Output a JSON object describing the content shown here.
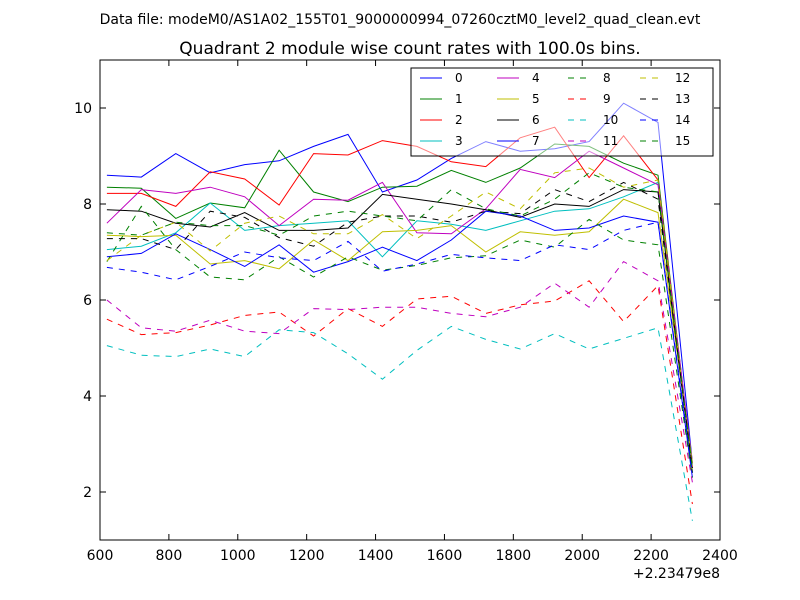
{
  "chart_data": {
    "type": "line",
    "suptitle": "Data file: modeM0/AS1A02_155T01_9000000994_07260cztM0_level2_quad_clean.evt",
    "title": "Quadrant 2 module wise count rates with 100.0s bins.",
    "xlabel": "",
    "ylabel": "",
    "x_offset_label": "+2.23479e8",
    "xlim": [
      600,
      2400
    ],
    "ylim": [
      1,
      11
    ],
    "xticks": [
      600,
      800,
      1000,
      1200,
      1400,
      1600,
      1800,
      2000,
      2200,
      2400
    ],
    "yticks": [
      2,
      4,
      6,
      8,
      10
    ],
    "x": [
      620,
      720,
      820,
      920,
      1020,
      1120,
      1220,
      1320,
      1420,
      1520,
      1620,
      1720,
      1820,
      1920,
      2020,
      2120,
      2220,
      2320
    ],
    "legend_location": "top-right",
    "series": [
      {
        "name": "0",
        "color": "#0000ff",
        "dash": "solid",
        "values": [
          8.6,
          8.56,
          9.05,
          8.65,
          8.82,
          8.9,
          9.2,
          9.45,
          8.25,
          8.5,
          8.95,
          9.3,
          9.1,
          9.15,
          9.3,
          10.1,
          9.7,
          2.6
        ]
      },
      {
        "name": "1",
        "color": "#008000",
        "dash": "solid",
        "values": [
          8.35,
          8.33,
          7.7,
          8.02,
          7.92,
          9.12,
          8.25,
          8.05,
          8.35,
          8.37,
          8.7,
          8.45,
          8.75,
          9.25,
          9.2,
          8.85,
          8.6,
          2.5
        ]
      },
      {
        "name": "2",
        "color": "#ff0000",
        "dash": "solid",
        "values": [
          8.22,
          8.22,
          7.95,
          8.67,
          8.52,
          7.98,
          9.05,
          9.02,
          9.32,
          9.2,
          8.88,
          8.78,
          9.38,
          9.6,
          8.55,
          9.42,
          8.5,
          2.5
        ]
      },
      {
        "name": "3",
        "color": "#00bfbf",
        "dash": "solid",
        "values": [
          7.05,
          7.12,
          7.4,
          8.02,
          7.45,
          7.55,
          7.6,
          7.65,
          6.9,
          7.65,
          7.58,
          7.45,
          7.65,
          7.85,
          7.9,
          8.15,
          8.45,
          2.4
        ]
      },
      {
        "name": "4",
        "color": "#bf00bf",
        "dash": "solid",
        "values": [
          7.6,
          8.3,
          8.22,
          8.35,
          8.15,
          7.55,
          8.1,
          8.08,
          8.45,
          7.4,
          7.38,
          7.9,
          8.72,
          8.55,
          9.1,
          8.75,
          8.4,
          2.6
        ]
      },
      {
        "name": "5",
        "color": "#bfbf00",
        "dash": "solid",
        "values": [
          7.35,
          7.32,
          7.35,
          6.75,
          6.82,
          6.65,
          7.25,
          6.82,
          7.42,
          7.45,
          7.55,
          7.0,
          7.42,
          7.35,
          7.42,
          8.1,
          7.82,
          2.6
        ]
      },
      {
        "name": "6",
        "color": "#000000",
        "dash": "solid",
        "values": [
          7.88,
          7.85,
          7.6,
          7.52,
          7.82,
          7.45,
          7.45,
          7.5,
          8.2,
          8.1,
          8.0,
          7.88,
          7.72,
          8.0,
          7.95,
          8.3,
          8.25,
          2.4
        ]
      },
      {
        "name": "7",
        "color": "#0000ff",
        "dash": "solid",
        "values": [
          6.9,
          6.97,
          7.38,
          7.05,
          6.7,
          7.15,
          6.58,
          6.8,
          7.1,
          6.82,
          7.25,
          7.85,
          7.75,
          7.45,
          7.5,
          7.75,
          7.62,
          2.3
        ]
      },
      {
        "name": "8",
        "color": "#008000",
        "dash": "dashed",
        "values": [
          6.8,
          7.95,
          7.05,
          6.48,
          6.42,
          6.9,
          6.48,
          6.9,
          6.62,
          6.72,
          6.88,
          6.92,
          7.25,
          7.1,
          7.68,
          7.25,
          7.15,
          2.3
        ]
      },
      {
        "name": "9",
        "color": "#ff0000",
        "dash": "dashed",
        "values": [
          5.6,
          5.28,
          5.32,
          5.48,
          5.68,
          5.75,
          5.25,
          5.82,
          5.45,
          6.02,
          6.08,
          5.72,
          5.9,
          5.98,
          6.4,
          5.55,
          6.3,
          1.75
        ]
      },
      {
        "name": "10",
        "color": "#00bfbf",
        "dash": "dashed",
        "values": [
          5.05,
          4.85,
          4.82,
          4.98,
          4.82,
          5.38,
          5.32,
          4.88,
          4.35,
          4.95,
          5.45,
          5.18,
          4.98,
          5.3,
          4.98,
          5.2,
          5.42,
          1.4
        ]
      },
      {
        "name": "11",
        "color": "#bf00bf",
        "dash": "dashed",
        "values": [
          6.0,
          5.42,
          5.35,
          5.58,
          5.35,
          5.3,
          5.82,
          5.8,
          5.85,
          5.85,
          5.72,
          5.65,
          5.85,
          6.35,
          5.85,
          6.8,
          6.4,
          2.2
        ]
      },
      {
        "name": "12",
        "color": "#bfbf00",
        "dash": "dashed",
        "values": [
          6.82,
          7.35,
          7.62,
          7.02,
          7.6,
          7.75,
          7.38,
          7.38,
          7.78,
          7.28,
          7.75,
          8.25,
          7.9,
          8.65,
          8.75,
          8.35,
          8.5,
          2.4
        ]
      },
      {
        "name": "13",
        "color": "#000000",
        "dash": "dashed",
        "values": [
          7.28,
          7.28,
          7.05,
          7.85,
          7.72,
          7.3,
          7.12,
          7.62,
          7.75,
          7.75,
          7.62,
          7.85,
          7.8,
          8.3,
          8.05,
          8.45,
          8.1,
          2.5
        ]
      },
      {
        "name": "14",
        "color": "#0000ff",
        "dash": "dashed",
        "values": [
          6.68,
          6.58,
          6.42,
          6.7,
          7.0,
          6.88,
          6.82,
          7.22,
          6.6,
          6.75,
          6.95,
          6.88,
          6.82,
          7.15,
          7.05,
          7.45,
          7.62,
          2.4
        ]
      },
      {
        "name": "15",
        "color": "#008000",
        "dash": "dashed",
        "values": [
          7.4,
          7.35,
          7.62,
          7.55,
          7.55,
          7.35,
          7.75,
          7.85,
          7.75,
          7.65,
          8.3,
          7.9,
          7.75,
          8.1,
          8.65,
          8.35,
          8.25,
          2.5
        ]
      }
    ]
  }
}
